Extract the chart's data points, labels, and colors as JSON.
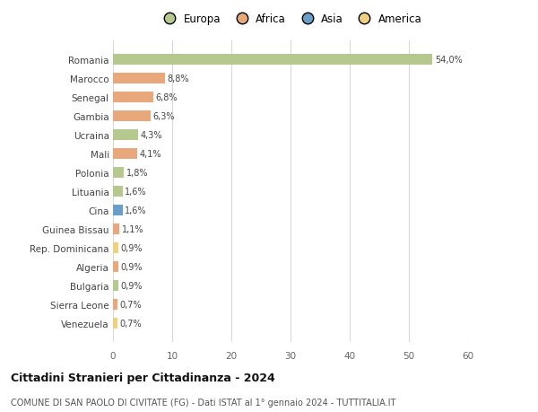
{
  "countries": [
    "Romania",
    "Marocco",
    "Senegal",
    "Gambia",
    "Ucraina",
    "Mali",
    "Polonia",
    "Lituania",
    "Cina",
    "Guinea Bissau",
    "Rep. Dominicana",
    "Algeria",
    "Bulgaria",
    "Sierra Leone",
    "Venezuela"
  ],
  "values": [
    54.0,
    8.8,
    6.8,
    6.3,
    4.3,
    4.1,
    1.8,
    1.6,
    1.6,
    1.1,
    0.9,
    0.9,
    0.9,
    0.7,
    0.7
  ],
  "labels": [
    "54,0%",
    "8,8%",
    "6,8%",
    "6,3%",
    "4,3%",
    "4,1%",
    "1,8%",
    "1,6%",
    "1,6%",
    "1,1%",
    "0,9%",
    "0,9%",
    "0,9%",
    "0,7%",
    "0,7%"
  ],
  "colors": [
    "#b5c98e",
    "#e8a87c",
    "#e8a87c",
    "#e8a87c",
    "#b5c98e",
    "#e8a87c",
    "#b5c98e",
    "#b5c98e",
    "#6b9ec7",
    "#e8a87c",
    "#f0d080",
    "#e8a87c",
    "#b5c98e",
    "#e8a87c",
    "#f0d080"
  ],
  "legend": [
    {
      "label": "Europa",
      "color": "#b5c98e"
    },
    {
      "label": "Africa",
      "color": "#e8a87c"
    },
    {
      "label": "Asia",
      "color": "#6b9ec7"
    },
    {
      "label": "America",
      "color": "#f0d080"
    }
  ],
  "title": "Cittadini Stranieri per Cittadinanza - 2024",
  "subtitle": "COMUNE DI SAN PAOLO DI CIVITATE (FG) - Dati ISTAT al 1° gennaio 2024 - TUTTITALIA.IT",
  "xlim": [
    0,
    60
  ],
  "xticks": [
    0,
    10,
    20,
    30,
    40,
    50,
    60
  ],
  "bg_color": "#ffffff",
  "grid_color": "#d8d8d8"
}
